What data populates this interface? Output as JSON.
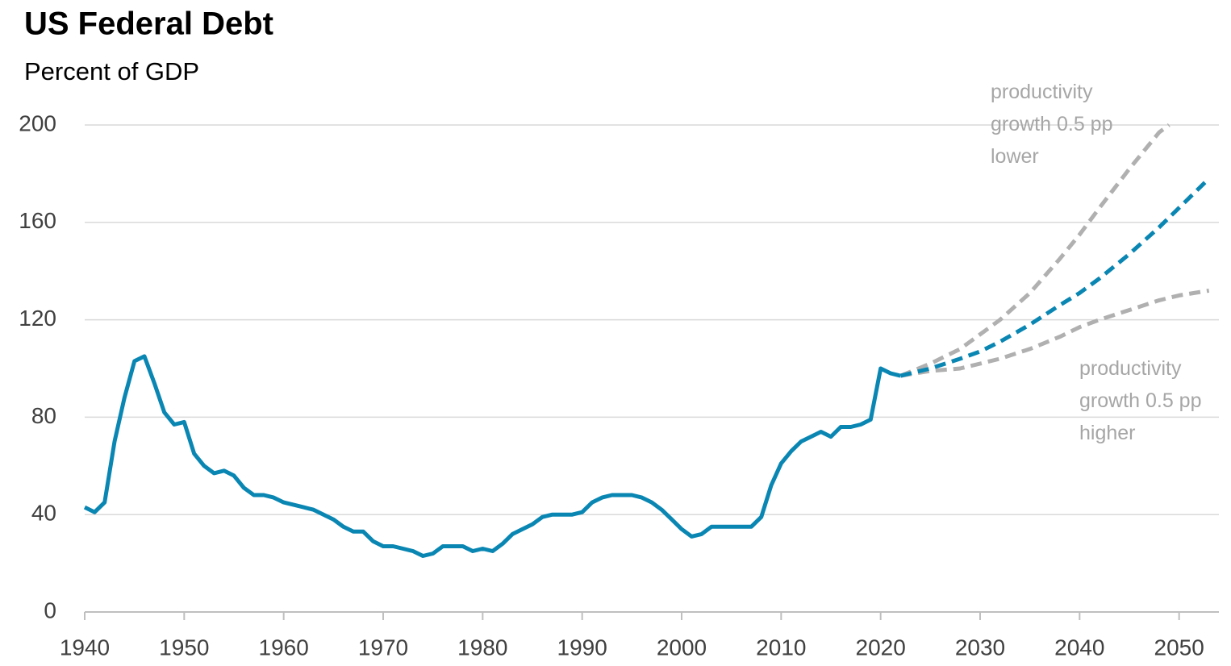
{
  "chart_data": {
    "type": "line",
    "title": "US Federal Debt",
    "subtitle": "Percent of GDP",
    "xlim": [
      1940,
      2054
    ],
    "xticks": [
      1940,
      1950,
      1960,
      1970,
      1980,
      1990,
      2000,
      2010,
      2020,
      2030,
      2040,
      2050
    ],
    "ylim": [
      0,
      200
    ],
    "yticks": [
      0,
      40,
      80,
      120,
      160,
      200
    ],
    "grid": true,
    "series": [
      {
        "color": "#0a86b3",
        "dashed": false,
        "x": [
          1940,
          1941,
          1942,
          1943,
          1944,
          1945,
          1946,
          1947,
          1948,
          1949,
          1950,
          1951,
          1952,
          1953,
          1954,
          1955,
          1956,
          1957,
          1958,
          1959,
          1960,
          1961,
          1962,
          1963,
          1964,
          1965,
          1966,
          1967,
          1968,
          1969,
          1970,
          1971,
          1972,
          1973,
          1974,
          1975,
          1976,
          1977,
          1978,
          1979,
          1980,
          1981,
          1982,
          1983,
          1984,
          1985,
          1986,
          1987,
          1988,
          1989,
          1990,
          1991,
          1992,
          1993,
          1994,
          1995,
          1996,
          1997,
          1998,
          1999,
          2000,
          2001,
          2002,
          2003,
          2004,
          2005,
          2006,
          2007,
          2008,
          2009,
          2010,
          2011,
          2012,
          2013,
          2014,
          2015,
          2016,
          2017,
          2018,
          2019,
          2020,
          2021,
          2022
        ],
        "values": [
          43,
          41,
          45,
          70,
          88,
          103,
          105,
          94,
          82,
          77,
          78,
          65,
          60,
          57,
          58,
          56,
          51,
          48,
          48,
          47,
          45,
          44,
          43,
          42,
          40,
          38,
          35,
          33,
          33,
          29,
          27,
          27,
          26,
          25,
          23,
          24,
          27,
          27,
          27,
          25,
          26,
          25,
          28,
          32,
          34,
          36,
          39,
          40,
          40,
          40,
          41,
          45,
          47,
          48,
          48,
          48,
          47,
          45,
          42,
          38,
          34,
          31,
          32,
          35,
          35,
          35,
          35,
          35,
          39,
          52,
          61,
          66,
          70,
          72,
          74,
          72,
          76,
          76,
          77,
          79,
          100,
          98,
          97
        ]
      },
      {
        "color": "#b0b0b0",
        "dashed": true,
        "x": [
          2022,
          2025,
          2028,
          2030,
          2032,
          2035,
          2038,
          2040,
          2042,
          2045,
          2048,
          2049
        ],
        "values": [
          97,
          102,
          108,
          114,
          120,
          131,
          145,
          155,
          166,
          182,
          197,
          200
        ]
      },
      {
        "color": "#b0b0b0",
        "dashed": true,
        "x": [
          2022,
          2025,
          2028,
          2030,
          2032,
          2035,
          2038,
          2040,
          2042,
          2045,
          2048,
          2050,
          2053
        ],
        "values": [
          97,
          99,
          100,
          102,
          104,
          108,
          113,
          117,
          120,
          124,
          128,
          130,
          132
        ]
      },
      {
        "color": "#0a86b3",
        "dashed": true,
        "x": [
          2022,
          2025,
          2028,
          2030,
          2032,
          2035,
          2038,
          2040,
          2042,
          2045,
          2048,
          2050,
          2053
        ],
        "values": [
          97,
          100,
          104,
          107,
          111,
          118,
          126,
          131,
          137,
          147,
          158,
          166,
          178
        ]
      }
    ],
    "annotations": [
      "productivity growth 0.5 pp lower",
      "productivity growth 0.5 pp higher"
    ]
  }
}
